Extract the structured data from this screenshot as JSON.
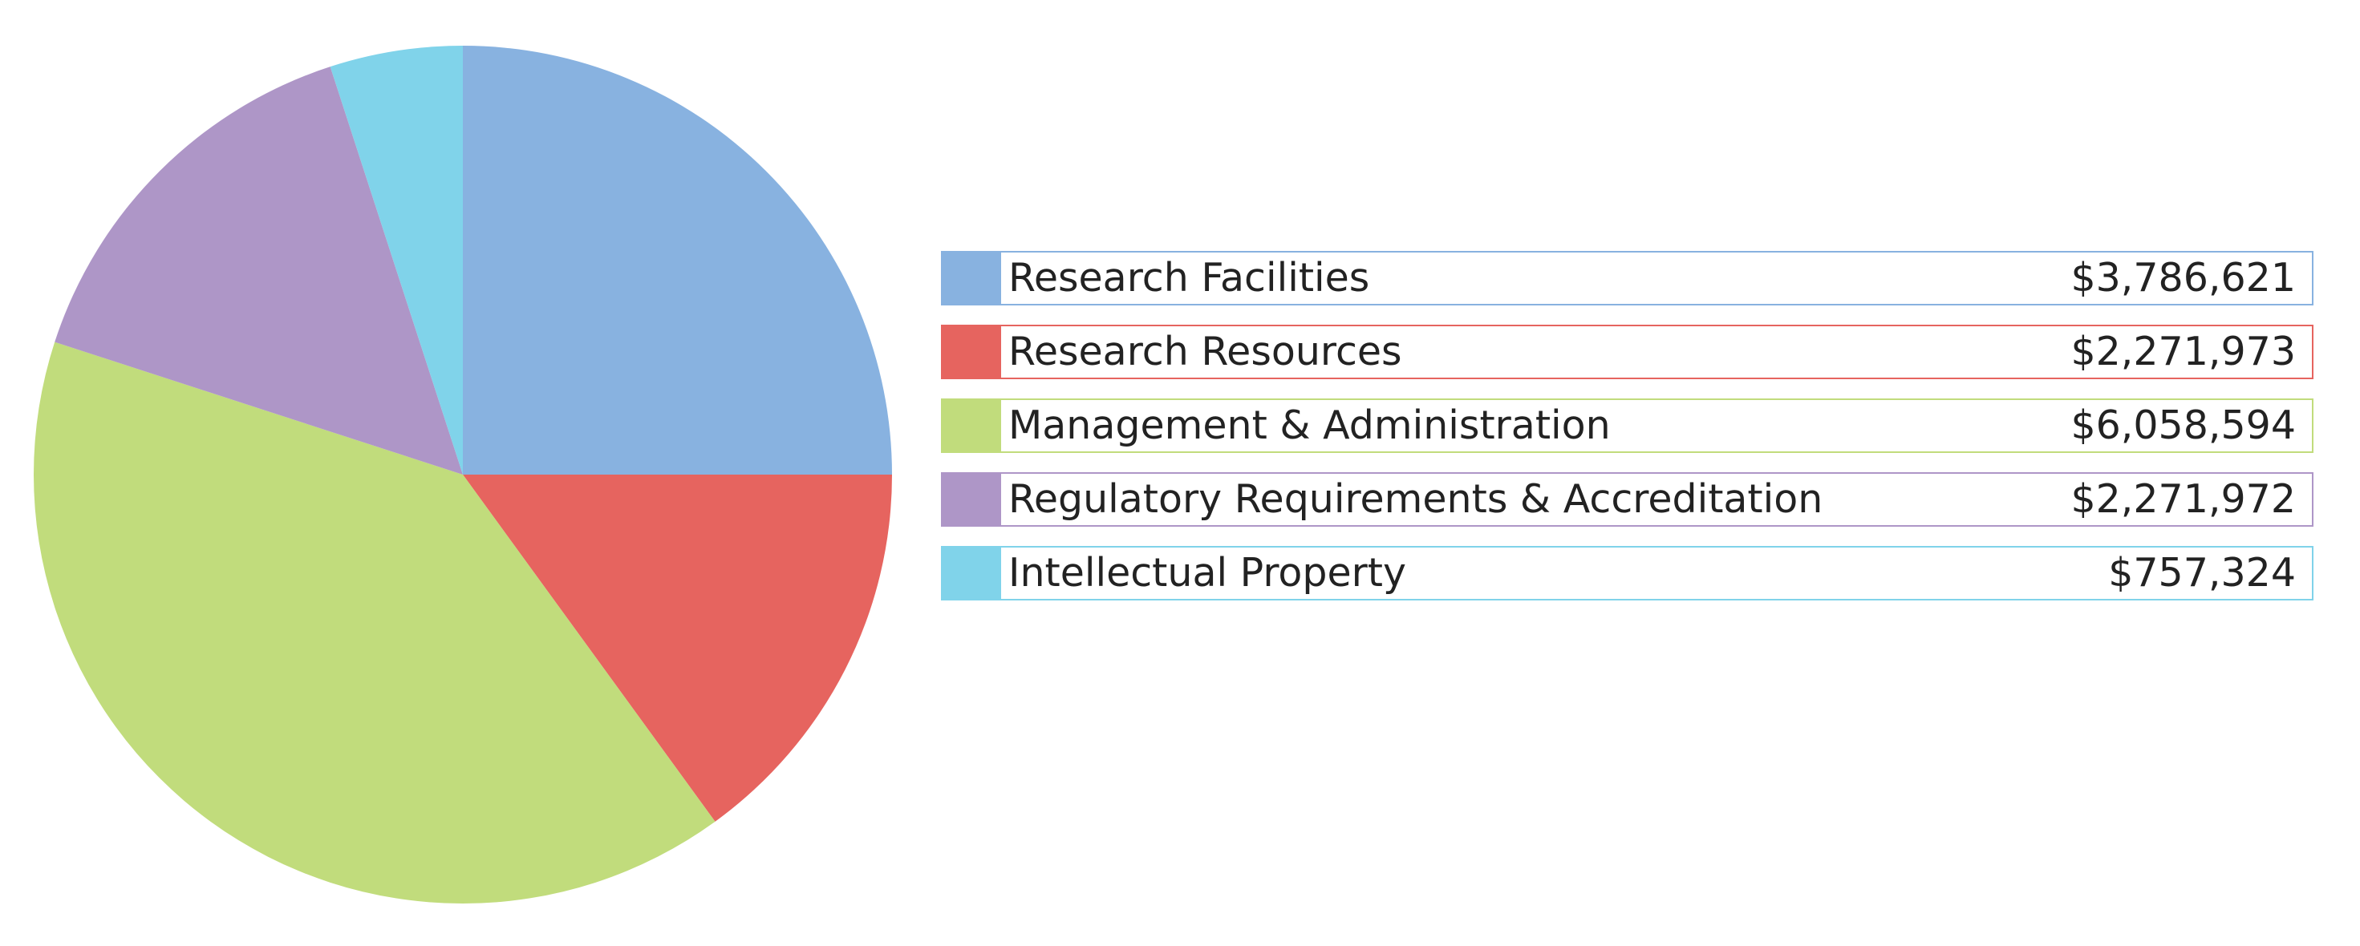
{
  "chart_data": {
    "type": "pie",
    "title": "",
    "start_angle_deg": 0,
    "direction": "clockwise",
    "slices": [
      {
        "label": "Research Facilities",
        "value": 3786621,
        "display_value": "$3,786,621",
        "color": "#88b2e0"
      },
      {
        "label": "Research Resources",
        "value": 2271973,
        "display_value": "$2,271,973",
        "color": "#e6645f"
      },
      {
        "label": "Management & Administration",
        "value": 6058594,
        "display_value": "$6,058,594",
        "color": "#c1dc7c"
      },
      {
        "label": "Regulatory Requirements & Accreditation",
        "value": 2271972,
        "display_value": "$2,271,972",
        "color": "#ae96c7"
      },
      {
        "label": "Intellectual Property",
        "value": 757324,
        "display_value": "$757,324",
        "color": "#80d3ea"
      }
    ],
    "legend_position": "right"
  }
}
